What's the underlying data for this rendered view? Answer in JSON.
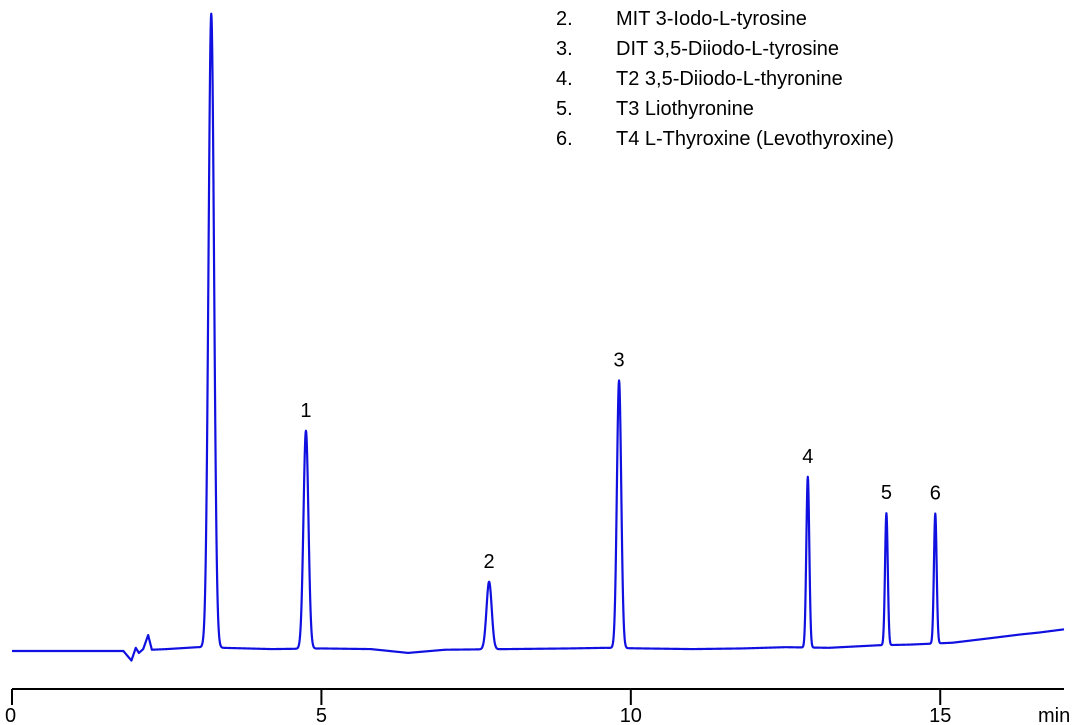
{
  "chart_data": {
    "type": "line",
    "title": "",
    "xlabel": "",
    "ylabel": "",
    "x_unit": "min",
    "xlim": [
      0,
      17
    ],
    "ylim": [
      0,
      100
    ],
    "x_ticks": [
      0,
      5,
      10,
      15
    ],
    "grid": false,
    "legend_position": "top-right",
    "series_color": "#1010e0",
    "legend": [
      {
        "number": "2.",
        "text": "MIT 3-Iodo-L-tyrosine"
      },
      {
        "number": "3.",
        "text": "DIT 3,5-Diiodo-L-tyrosine"
      },
      {
        "number": "4.",
        "text": "T2 3,5-Diiodo-L-thyronine"
      },
      {
        "number": "5.",
        "text": "T3 Liothyronine"
      },
      {
        "number": "6.",
        "text": "T4 L-Thyroxine (Levothyroxine)"
      }
    ],
    "peaks": [
      {
        "label": "",
        "x": 3.22,
        "height": 99.5,
        "width": 0.045
      },
      {
        "label": "1",
        "x": 4.75,
        "height": 34.2,
        "width": 0.04
      },
      {
        "label": "2",
        "x": 7.71,
        "height": 10.6,
        "width": 0.042
      },
      {
        "label": "3",
        "x": 9.81,
        "height": 42.0,
        "width": 0.035
      },
      {
        "label": "4",
        "x": 12.86,
        "height": 26.8,
        "width": 0.024
      },
      {
        "label": "5",
        "x": 14.13,
        "height": 20.7,
        "width": 0.022
      },
      {
        "label": "6",
        "x": 14.92,
        "height": 20.4,
        "width": 0.022
      }
    ],
    "baseline": [
      [
        0,
        0
      ],
      [
        1.8,
        0
      ],
      [
        1.93,
        -1.5
      ],
      [
        2.0,
        0.5
      ],
      [
        2.05,
        -0.3
      ],
      [
        2.12,
        0.3
      ],
      [
        2.2,
        2.5
      ],
      [
        2.26,
        0.2
      ],
      [
        2.5,
        0.3
      ],
      [
        3.0,
        0.6
      ],
      [
        3.4,
        0.5
      ],
      [
        4.2,
        0.3
      ],
      [
        5.0,
        0.4
      ],
      [
        5.8,
        0.3
      ],
      [
        6.4,
        -0.3
      ],
      [
        7.0,
        0.2
      ],
      [
        8.0,
        0.3
      ],
      [
        9.0,
        0.4
      ],
      [
        9.6,
        0.5
      ],
      [
        10.2,
        0.4
      ],
      [
        11.0,
        0.3
      ],
      [
        11.8,
        0.4
      ],
      [
        12.5,
        0.6
      ],
      [
        13.2,
        0.5
      ],
      [
        13.6,
        0.7
      ],
      [
        14.0,
        0.9
      ],
      [
        14.5,
        1.0
      ],
      [
        15.2,
        1.3
      ],
      [
        15.8,
        2.0
      ],
      [
        16.3,
        2.6
      ],
      [
        16.6,
        2.9
      ],
      [
        17.0,
        3.4
      ]
    ]
  }
}
